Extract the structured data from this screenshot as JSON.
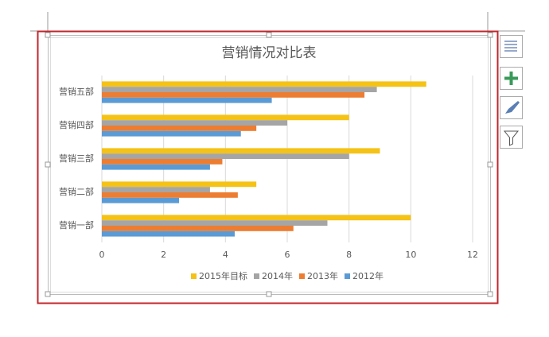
{
  "chart_data": {
    "type": "bar",
    "orientation": "horizontal",
    "title": "营销情况对比表",
    "categories": [
      "营销一部",
      "营销二部",
      "营销三部",
      "营销四部",
      "营销五部"
    ],
    "series": [
      {
        "name": "2015年目标",
        "color": "#f5c216",
        "values": [
          10,
          5,
          9,
          8,
          10.5
        ]
      },
      {
        "name": "2014年",
        "color": "#a5a5a5",
        "values": [
          7.3,
          3.5,
          8,
          6,
          8.9
        ]
      },
      {
        "name": "2013年",
        "color": "#ed7d31",
        "values": [
          6.2,
          4.4,
          3.9,
          5,
          8.5
        ]
      },
      {
        "name": "2012年",
        "color": "#5b9bd5",
        "values": [
          4.3,
          2.5,
          3.5,
          4.5,
          5.5
        ]
      }
    ],
    "xlim": [
      0,
      12
    ],
    "xticks": [
      0,
      2,
      4,
      6,
      8,
      10,
      12
    ],
    "grid": true,
    "legend": "bottom"
  }
}
